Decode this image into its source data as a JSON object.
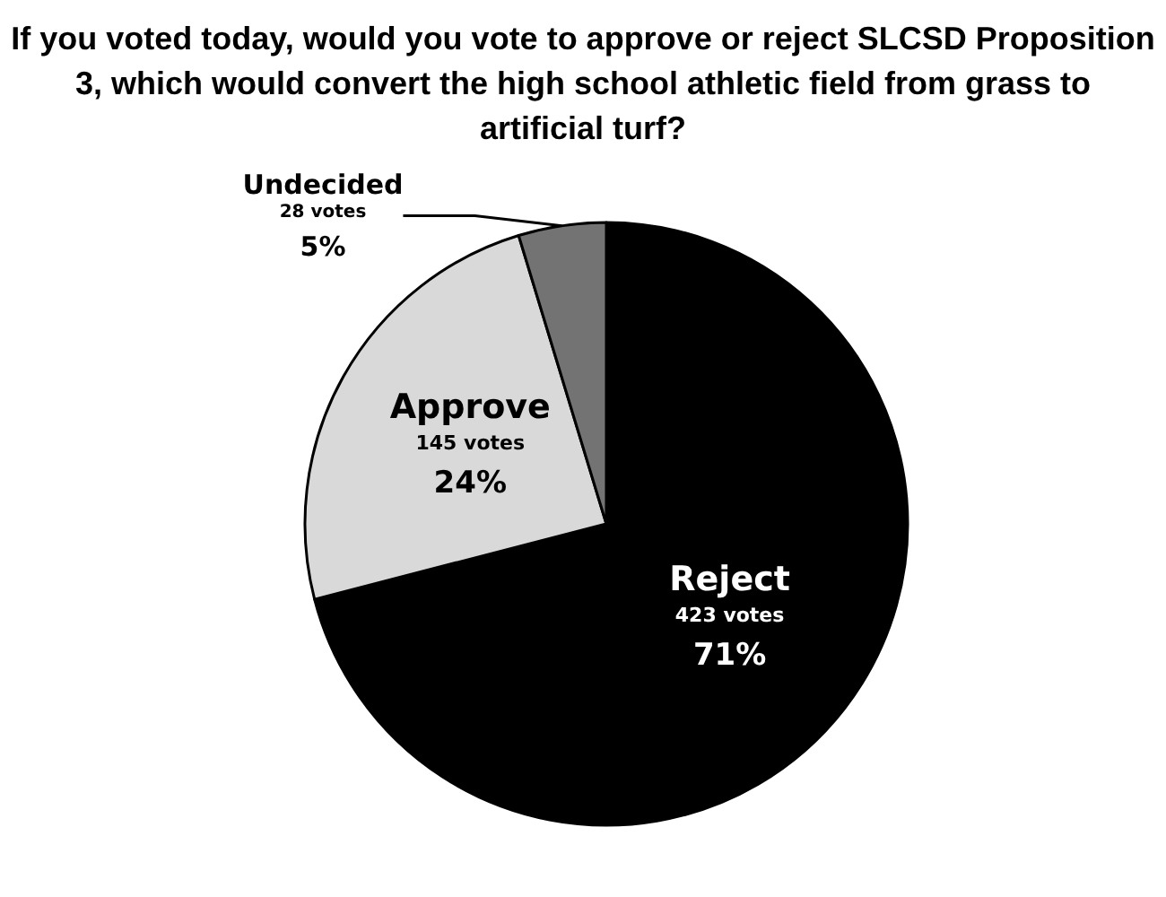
{
  "chart_data": {
    "type": "pie",
    "title": "If you voted today, would you vote to approve or reject SLCSD Proposition 3, which would convert the high school athletic field from grass to artificial turf?",
    "categories": [
      "Reject",
      "Approve",
      "Undecided"
    ],
    "values": [
      423,
      145,
      28
    ],
    "colors": [
      "#000000",
      "#d9d9d9",
      "#737373"
    ],
    "value_labels": [
      "423 votes\n71%",
      "145 votes\n24%",
      "28 votes\n5%"
    ],
    "legend": false
  }
}
